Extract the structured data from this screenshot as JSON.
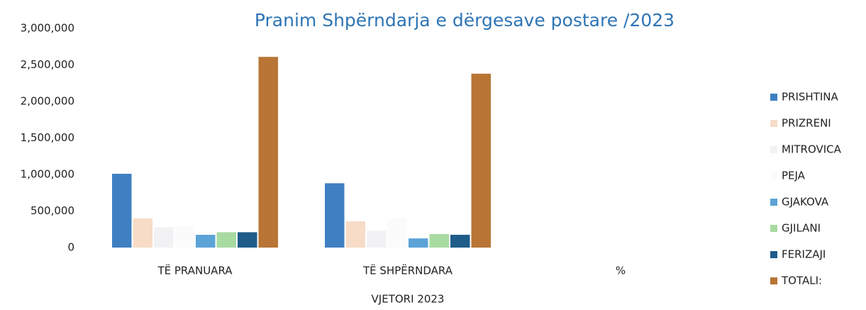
{
  "chart_data": {
    "type": "bar",
    "title": "Pranim Shpërndarja e dërgesave postare /2023",
    "x_label": "VJETORI 2023",
    "categories": [
      "TË PRANUARA",
      "TË SHPËRNDARA",
      "%"
    ],
    "series": [
      {
        "name": "PRISHTINA",
        "color": "#3f80c2",
        "values": [
          1010000,
          880000,
          0
        ]
      },
      {
        "name": "PRIZRENI",
        "color": "#f7dcc8",
        "values": [
          400000,
          360000,
          0
        ]
      },
      {
        "name": "MITROVICA",
        "color": "#f2f2f4",
        "values": [
          280000,
          230000,
          0
        ]
      },
      {
        "name": "PEJA",
        "color": "#fbfbfb",
        "values": [
          300000,
          400000,
          0
        ]
      },
      {
        "name": "GJAKOVA",
        "color": "#5ca3d8",
        "values": [
          175000,
          125000,
          0
        ]
      },
      {
        "name": "GJILANI",
        "color": "#a8dba2",
        "values": [
          210000,
          185000,
          0
        ]
      },
      {
        "name": "FERIZAJI",
        "color": "#1f5c89",
        "values": [
          210000,
          175000,
          0
        ]
      },
      {
        "name": "TOTALI:",
        "color": "#b87535",
        "values": [
          2610000,
          2380000,
          100
        ]
      }
    ],
    "ylim": [
      0,
      3000000
    ],
    "yticks": [
      0,
      {
        "value": 500000,
        "label": "500,000"
      },
      {
        "value": 1000000,
        "label": "1,000,000"
      },
      {
        "value": 1500000,
        "label": "1,500,000"
      },
      {
        "value": 2000000,
        "label": "2,000,000"
      },
      {
        "value": 2500000,
        "label": "2,500,000"
      },
      {
        "value": 3000000,
        "label": "3,000,000"
      }
    ],
    "grid": false,
    "legend": "right"
  }
}
